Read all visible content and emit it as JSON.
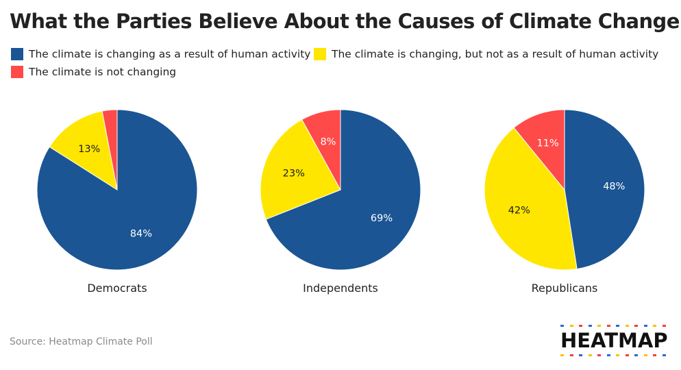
{
  "title": "What the Parties Believe About the Causes of Climate Change",
  "source": "Source: Heatmap Climate Poll",
  "logo_text": "HEATMAP",
  "colors": {
    "human": "#1b5594",
    "not_human": "#ffe600",
    "not_changing": "#ff4a4a",
    "logo_blue": "#2a6bd1",
    "logo_yellow": "#f5c400",
    "logo_red": "#f04040"
  },
  "legend": [
    {
      "label": "The climate is changing as a result of human activity",
      "color": "#1b5594"
    },
    {
      "label": "The climate is changing, but not as a result of human activity",
      "color": "#ffe600"
    },
    {
      "label": "The climate is not changing",
      "color": "#ff4a4a"
    }
  ],
  "chart_data": {
    "type": "pie",
    "title": "What the Parties Believe About the Causes of Climate Change",
    "categories": [
      "The climate is changing as a result of human activity",
      "The climate is changing, but not as a result of human activity",
      "The climate is not changing"
    ],
    "legend_position": "top-left",
    "pies": [
      {
        "name": "Democrats",
        "values": [
          84,
          13,
          3
        ],
        "labels": [
          "84%",
          "13%",
          ""
        ]
      },
      {
        "name": "Independents",
        "values": [
          69,
          23,
          8
        ],
        "labels": [
          "69%",
          "23%",
          "8%"
        ]
      },
      {
        "name": "Republicans",
        "values": [
          48,
          42,
          11
        ],
        "labels": [
          "48%",
          "42%",
          "11%"
        ]
      }
    ]
  }
}
